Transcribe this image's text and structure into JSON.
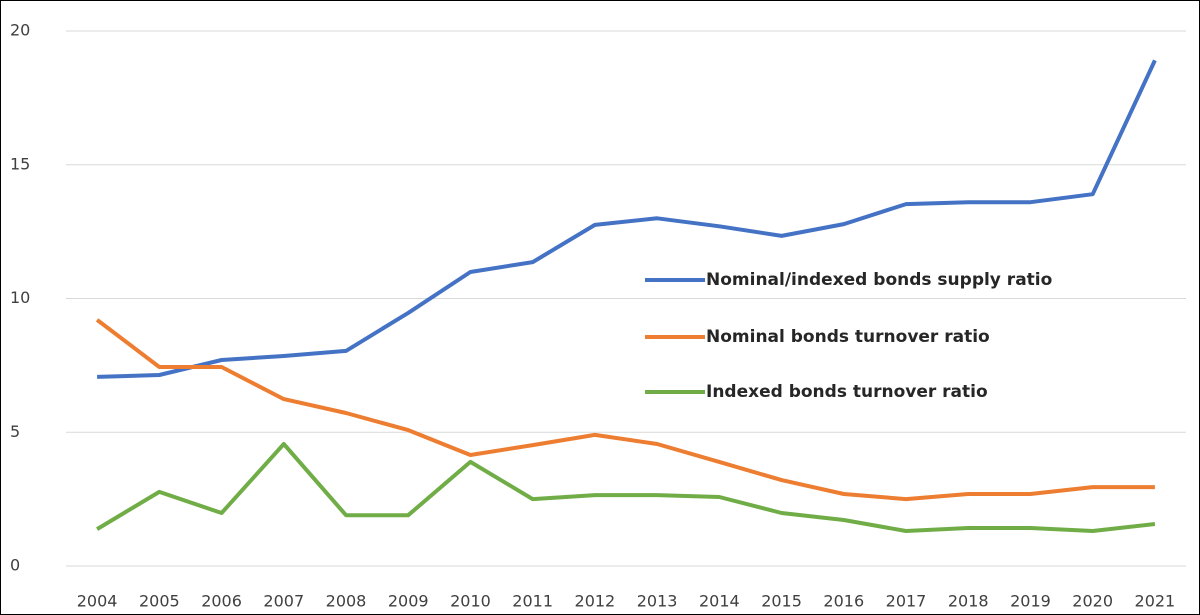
{
  "chart_data": {
    "type": "line",
    "categories": [
      "2004",
      "2005",
      "2006",
      "2007",
      "2008",
      "2009",
      "2010",
      "2011",
      "2012",
      "2013",
      "2014",
      "2015",
      "2016",
      "2017",
      "2018",
      "2019",
      "2020",
      "2021"
    ],
    "series": [
      {
        "name": "Nominal/indexed bonds supply ratio",
        "color": "#4472c4",
        "values": [
          7.07,
          7.14,
          7.7,
          7.85,
          8.04,
          9.46,
          10.99,
          11.36,
          12.75,
          13.0,
          12.7,
          12.34,
          12.78,
          13.53,
          13.6,
          13.6,
          13.9,
          18.9
        ]
      },
      {
        "name": "Nominal bonds turnover ratio",
        "color": "#ed7d31",
        "values": [
          9.2,
          7.44,
          7.44,
          6.24,
          5.72,
          5.08,
          4.15,
          4.52,
          4.9,
          4.56,
          3.89,
          3.21,
          2.69,
          2.5,
          2.69,
          2.69,
          2.95,
          2.95
        ]
      },
      {
        "name": "Indexed bonds turnover ratio",
        "color": "#70ad47",
        "values": [
          1.38,
          2.77,
          1.98,
          4.56,
          1.9,
          1.9,
          3.89,
          2.5,
          2.65,
          2.65,
          2.58,
          1.98,
          1.72,
          1.31,
          1.42,
          1.42,
          1.31,
          1.57
        ]
      }
    ],
    "ylim": [
      0,
      20
    ],
    "yticks": [
      0,
      5,
      10,
      15,
      20
    ],
    "grid": true
  }
}
